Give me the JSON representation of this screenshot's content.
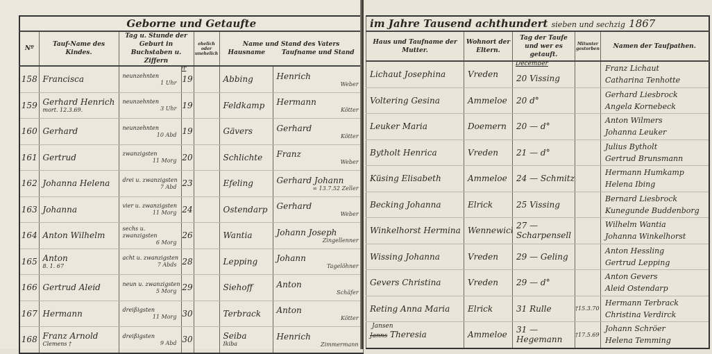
{
  "left_page": {
    "section_title": "Geborne und Getaufte",
    "headers": {
      "number": "Nº",
      "child_name": "Tauf-Name des Kindes.",
      "birth": "Tag u. Stunde der Geburt in Buchstaben u. Ziffern",
      "legitimacy": "ehelich oder unehelich",
      "father": "Name und Stand des Vaters",
      "father_surname": "Hausname",
      "father_given": "Taufname und Stand"
    }
  },
  "right_page": {
    "year_line_printed": "im Jahre Tausend achthundert",
    "year_line_handwritten": "sieben und sechzig",
    "year_digits": "1867",
    "headers": {
      "mother": "Haus und Taufname der Mutter.",
      "residence": "Wohnort der Eltern.",
      "baptism": "Tag der Taufe und wer es getauft.",
      "died": "Mitunter gestorben",
      "godparents": "Namen der Taufpathen."
    }
  },
  "month_label": "December",
  "entries": [
    {
      "no": "158",
      "child": "Francisca",
      "child_note": "",
      "birth_words": "neunzehnten",
      "birth_hour": "1 Uhr",
      "day": "19",
      "legit": "",
      "father_surname": "Abbing",
      "father_given": "Henrich",
      "father_status": "Weber",
      "mother": "Lichaut Josephina",
      "residence": "Vreden",
      "baptism": "20 Vissing",
      "died": "",
      "godparent1": "Franz Lichaut",
      "godparent2": "Catharina Tenhotte"
    },
    {
      "no": "159",
      "child": "Gerhard Henrich",
      "child_note": "mort. 12.3.69.",
      "birth_words": "neunzehnten",
      "birth_hour": "3 Uhr",
      "day": "19",
      "legit": "",
      "father_surname": "Feldkamp",
      "father_given": "Hermann",
      "father_status": "Kötter",
      "mother": "Voltering Gesina",
      "residence": "Ammeloe",
      "baptism": "20 d°",
      "died": "",
      "godparent1": "Gerhard Liesbrock",
      "godparent2": "Angela Kornebeck"
    },
    {
      "no": "160",
      "child": "Gerhard",
      "child_note": "",
      "birth_words": "neunzehnten",
      "birth_hour": "10 Abd",
      "day": "19",
      "legit": "",
      "father_surname": "Gävers",
      "father_given": "Gerhard",
      "father_status": "Kötter",
      "mother": "Leuker Maria",
      "residence": "Doemern",
      "baptism": "20 — d°",
      "died": "",
      "godparent1": "Anton Wilmers",
      "godparent2": "Johanna Leuker"
    },
    {
      "no": "161",
      "child": "Gertrud",
      "child_note": "",
      "birth_words": "zwanzigsten",
      "birth_hour": "11 Morg",
      "day": "20",
      "legit": "",
      "father_surname": "Schlichte",
      "father_given": "Franz",
      "father_status": "Weber",
      "mother": "Bytholt Henrica",
      "residence": "Vreden",
      "baptism": "21 — d°",
      "died": "",
      "godparent1": "Julius Bytholt",
      "godparent2": "Gertrud Brunsmann"
    },
    {
      "no": "162",
      "child": "Johanna Helena",
      "child_note": "",
      "birth_words": "drei u. zwanzigsten",
      "birth_hour": "7 Abd",
      "day": "23",
      "legit": "",
      "father_surname": "Efeling",
      "father_given": "Gerhard Johann",
      "father_status": "∞ 13.7.52 Zeller",
      "mother": "Küsing Elisabeth",
      "residence": "Ammeloe",
      "baptism": "24 — Schmitz",
      "died": "",
      "godparent1": "Hermann Humkamp",
      "godparent2": "Helena Ibing"
    },
    {
      "no": "163",
      "child": "Johanna",
      "child_note": "",
      "birth_words": "vier u. zwanzigsten",
      "birth_hour": "11 Morg",
      "day": "24",
      "legit": "",
      "father_surname": "Ostendarp",
      "father_given": "Gerhard",
      "father_status": "Weber",
      "mother": "Becking Johanna",
      "residence": "Elrick",
      "baptism": "25 Vissing",
      "died": "",
      "godparent1": "Bernard Liesbrock",
      "godparent2": "Kunegunde Buddenborg"
    },
    {
      "no": "164",
      "child": "Anton Wilhelm",
      "child_note": "",
      "birth_words": "sechs u. zwanzigsten",
      "birth_hour": "6 Morg",
      "day": "26",
      "legit": "",
      "father_surname": "Wantia",
      "father_given": "Johann Joseph",
      "father_status": "Zingellenner",
      "mother": "Winkelhorst Hermina",
      "residence": "Wennewick",
      "baptism": "27 — Scharpensell",
      "died": "",
      "godparent1": "Wilhelm Wantia",
      "godparent2": "Johanna Winkelhorst"
    },
    {
      "no": "165",
      "child": "Anton",
      "child_note": "8. 1. 67",
      "birth_words": "acht u. zwanzigsten",
      "birth_hour": "7 Abds",
      "day": "28",
      "legit": "",
      "father_surname": "Lepping",
      "father_given": "Johann",
      "father_status": "Tagelöhner",
      "mother": "Wissing Johanna",
      "residence": "Vreden",
      "baptism": "29 — Geling",
      "died": "",
      "godparent1": "Anton Hessling",
      "godparent2": "Gertrud Lepping"
    },
    {
      "no": "166",
      "child": "Gertrud Aleid",
      "child_note": "",
      "birth_words": "neun u. zwanzigsten",
      "birth_hour": "5 Morg",
      "day": "29",
      "legit": "",
      "father_surname": "Siehoff",
      "father_given": "Anton",
      "father_status": "Schäfer",
      "mother": "Gevers Christina",
      "residence": "Vreden",
      "baptism": "29 — d°",
      "died": "",
      "godparent1": "Anton Gevers",
      "godparent2": "Aleid Ostendarp"
    },
    {
      "no": "167",
      "child": "Hermann",
      "child_note": "",
      "birth_words": "dreißigsten",
      "birth_hour": "11 Morg",
      "day": "30",
      "legit": "",
      "father_surname": "Terbrack",
      "father_given": "Anton",
      "father_status": "Kötter",
      "mother": "Reting Anna Maria",
      "residence": "Elrick",
      "baptism": "31 Rulle",
      "died": "†15.3.70",
      "godparent1": "Hermann Terbrack",
      "godparent2": "Christina Verdirck"
    },
    {
      "no": "168",
      "child": "Franz Arnold",
      "child_note": "Clemens †",
      "birth_words": "dreißigsten",
      "birth_hour": "9 Abd",
      "day": "30",
      "legit": "",
      "father_surname": "Seiba",
      "father_surname2": "Ikiba",
      "father_given": "Henrich",
      "father_status": "Zimmermann",
      "mother_struck": "Janns",
      "mother_insert": "Jansen",
      "mother": "Theresia",
      "residence": "Ammeloe",
      "baptism": "31 — Hegemann",
      "died": "†17.5.69",
      "godparent1": "Johann Schröer",
      "godparent2": "Helena Temming"
    }
  ]
}
